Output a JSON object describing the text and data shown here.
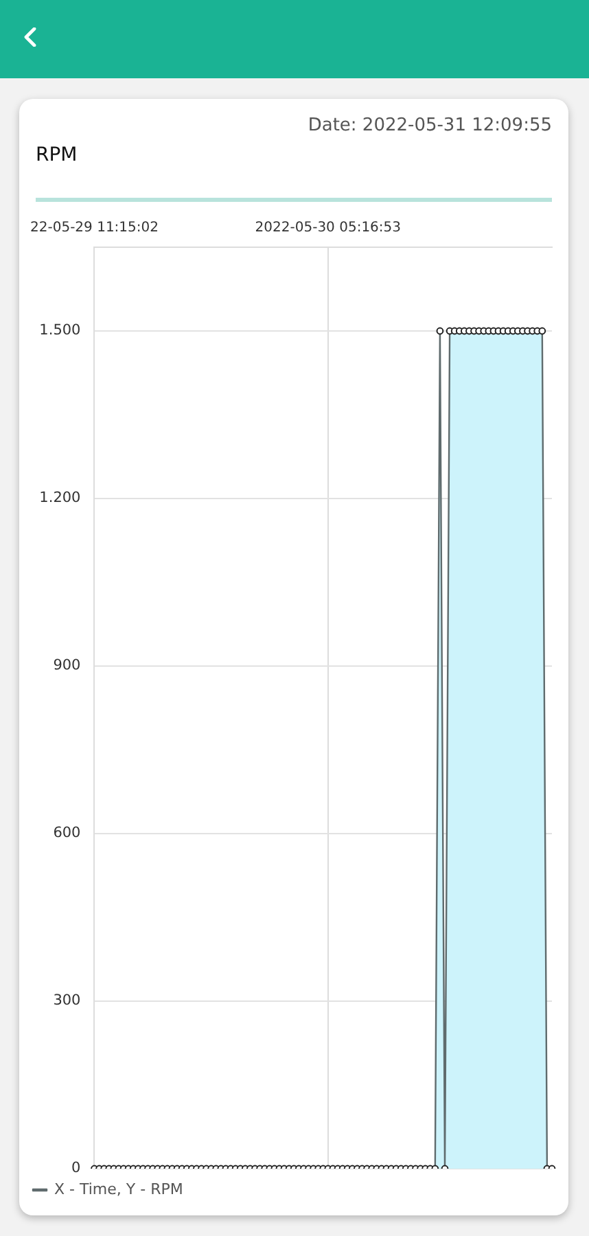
{
  "chart_data": {
    "type": "area",
    "title": "RPM",
    "subtitle": "Date: 2022-05-31 12:09:55",
    "categories": [
      "22-05-29 11:15:02",
      null,
      null,
      null,
      null,
      null,
      null,
      null,
      null,
      null,
      null,
      null,
      null,
      null,
      null,
      null,
      null,
      null,
      null,
      null,
      null,
      null,
      null,
      null,
      null,
      null,
      null,
      null,
      null,
      null,
      null,
      null,
      null,
      null,
      null,
      null,
      null,
      null,
      null,
      null,
      null,
      null,
      null,
      null,
      null,
      null,
      null,
      null,
      "2022-05-30 05:16:53",
      null,
      null,
      null,
      null,
      null,
      null,
      null,
      null,
      null,
      null,
      null,
      null,
      null,
      null,
      null,
      null,
      null,
      null,
      null,
      null,
      null,
      null,
      null,
      null,
      null,
      null,
      null,
      null,
      null,
      null,
      null,
      null,
      null,
      null,
      null,
      null,
      null,
      null,
      null,
      null,
      null,
      null,
      null,
      null,
      null,
      null
    ],
    "series": [
      {
        "name": "X - Time, Y - RPM",
        "color": "#5f6b6d",
        "values": [
          0,
          0,
          0,
          0,
          0,
          0,
          0,
          0,
          0,
          0,
          0,
          0,
          0,
          0,
          0,
          0,
          0,
          0,
          0,
          0,
          0,
          0,
          0,
          0,
          0,
          0,
          0,
          0,
          0,
          0,
          0,
          0,
          0,
          0,
          0,
          0,
          0,
          0,
          0,
          0,
          0,
          0,
          0,
          0,
          0,
          0,
          0,
          0,
          0,
          0,
          0,
          0,
          0,
          0,
          0,
          0,
          0,
          0,
          0,
          0,
          0,
          0,
          0,
          0,
          0,
          0,
          0,
          0,
          0,
          0,
          0,
          1500,
          0,
          1500,
          1500,
          1500,
          1500,
          1500,
          1500,
          1500,
          1500,
          1500,
          1500,
          1500,
          1500,
          1500,
          1500,
          1500,
          1500,
          1500,
          1500,
          1500,
          1500,
          0,
          0
        ]
      }
    ],
    "ylim": [
      0,
      1650
    ],
    "yticks": [
      0,
      {
        "value": 300,
        "label": "300"
      },
      {
        "value": 600,
        "label": "600"
      },
      {
        "value": 900,
        "label": "900"
      },
      {
        "value": 1200,
        "label": "1.200"
      },
      {
        "value": 1500,
        "label": "1.500"
      }
    ],
    "grid": true,
    "legend": "bottom",
    "marker": "circle",
    "line_style": "solid"
  }
}
